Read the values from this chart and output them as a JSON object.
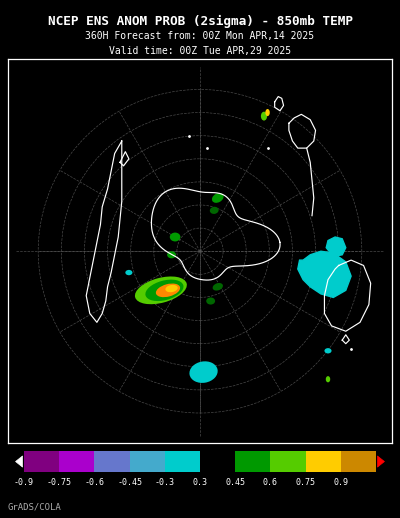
{
  "title_line1": "NCEP ENS ANOM PROB (2sigma) - 850mb TEMP",
  "title_line2": "360H Forecast from: 00Z Mon APR,14 2025",
  "title_line3": "Valid time: 00Z Tue APR,29 2025",
  "credit": "GrADS/COLA",
  "bg": "#000000",
  "fg": "#ffffff",
  "grid_color": "#555555",
  "cb_colors": [
    "#800080",
    "#aa00cc",
    "#6677cc",
    "#44aacc",
    "#00cccc",
    "#000000",
    "#009900",
    "#55cc00",
    "#ffcc00",
    "#cc8800"
  ],
  "cb_labels": [
    "-0.9",
    "-0.75",
    "-0.6",
    "-0.45",
    "-0.3",
    "0.3",
    "0.45",
    "0.6",
    "0.75",
    "0.9"
  ],
  "cyan": "#00cccc",
  "green_d": "#006600",
  "green_m": "#009900",
  "green_l": "#55cc00",
  "yellow": "#ffcc00",
  "orange": "#ff8800",
  "fig_w": 4.0,
  "fig_h": 5.18,
  "dpi": 100
}
